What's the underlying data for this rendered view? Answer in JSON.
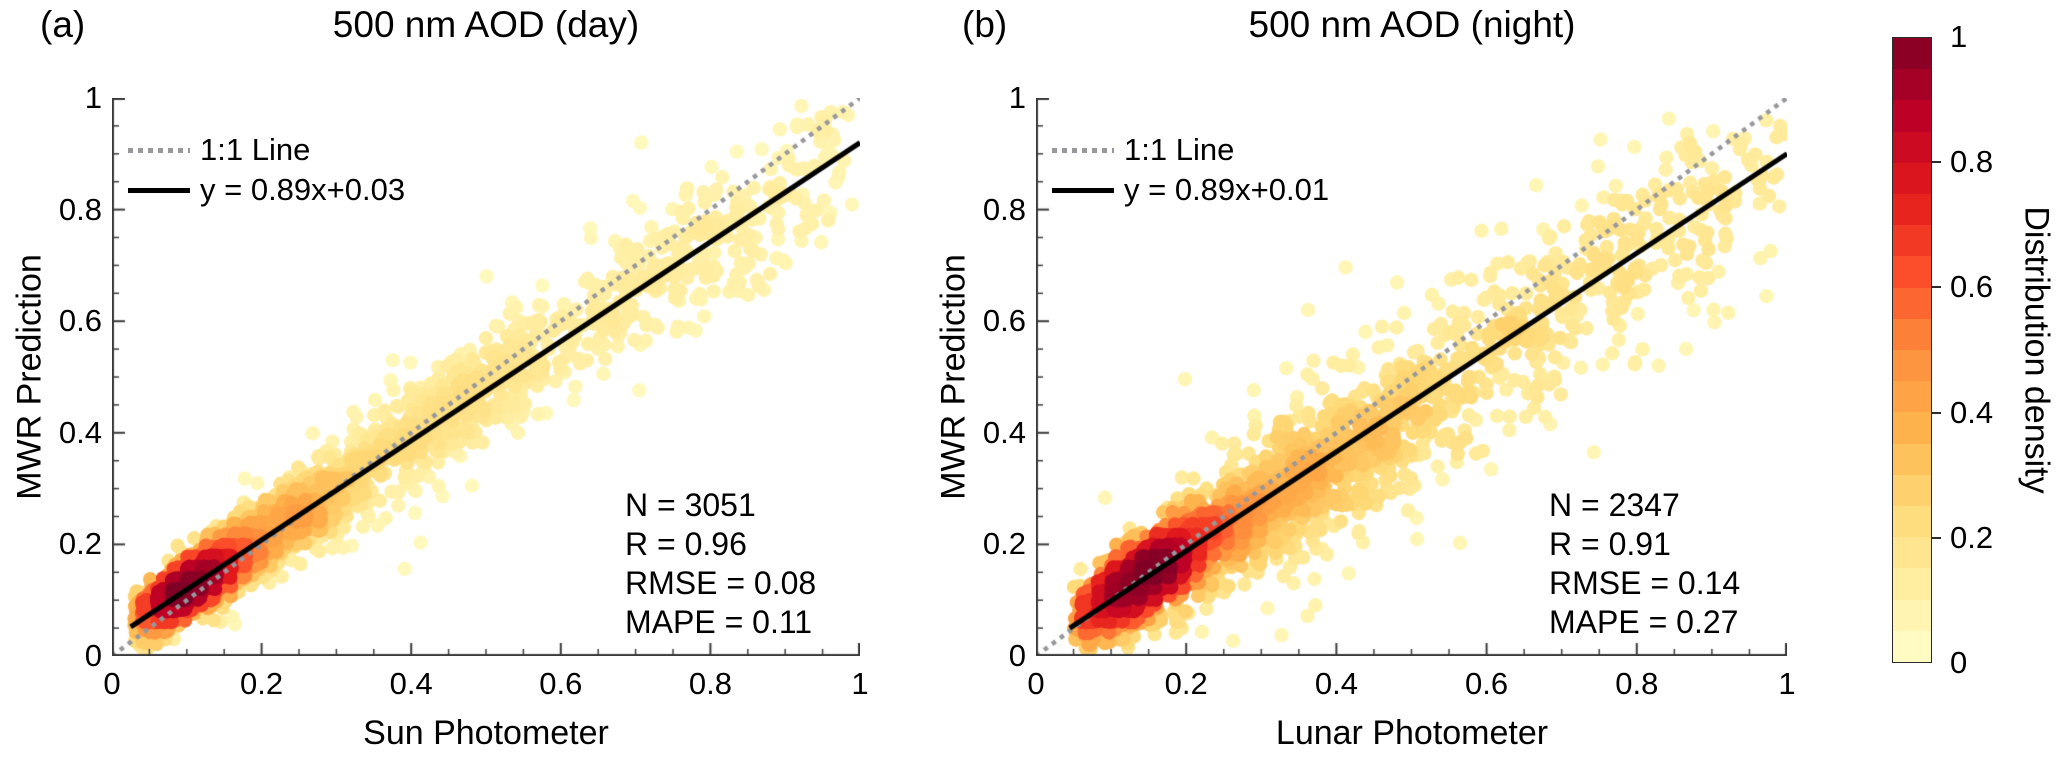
{
  "figure": {
    "background": "#ffffff",
    "axis_color": "#3a3a3a"
  },
  "colorbar": {
    "label": "Distribution density",
    "ticks": [
      "0",
      "0.2",
      "0.4",
      "0.6",
      "0.8",
      "1"
    ],
    "tick_values": [
      0,
      0.2,
      0.4,
      0.6,
      0.8,
      1
    ],
    "range": [
      0,
      1
    ],
    "segments": 20,
    "colormap_name": "YlOrRd",
    "colormap": [
      "#ffffcc",
      "#ffeda0",
      "#fed976",
      "#feb24c",
      "#fd8d3c",
      "#fc4e2a",
      "#e31a1c",
      "#bd0026",
      "#800026"
    ],
    "density_exponent": 0.55
  },
  "chart_data": [
    {
      "type": "scatter",
      "panel_label": "(a)",
      "title": "500 nm AOD (day)",
      "xlabel": "Sun Photometer",
      "ylabel": "MWR Prediction",
      "xlim": [
        0,
        1
      ],
      "ylim": [
        0,
        1
      ],
      "x_ticks": {
        "labels": [
          "0",
          "0.2",
          "0.4",
          "0.6",
          "0.8",
          "1"
        ],
        "values": [
          0,
          0.2,
          0.4,
          0.6,
          0.8,
          1
        ]
      },
      "y_ticks": {
        "labels": [
          "0",
          "0.2",
          "0.4",
          "0.6",
          "0.8",
          "1"
        ],
        "values": [
          0,
          0.2,
          0.4,
          0.6,
          0.8,
          1
        ]
      },
      "minor_tick_step": 0.05,
      "legend": [
        "1:1 Line",
        "y = 0.89x+0.03"
      ],
      "identity_line": {
        "from": [
          0,
          0
        ],
        "to": [
          1,
          1
        ],
        "style": "dotted",
        "color": "#98989c"
      },
      "fit_line": {
        "equation": "y = 0.89x+0.03",
        "slope": 0.89,
        "intercept": 0.03,
        "x_range": [
          0.025,
          1.0
        ],
        "color": "#000000"
      },
      "stats": {
        "N": 3051,
        "R": 0.96,
        "RMSE": 0.08,
        "MAPE": 0.11
      },
      "stats_lines": [
        "N = 3051",
        "R = 0.96",
        "RMSE = 0.08",
        "MAPE = 0.11"
      ],
      "n_points": 3051,
      "point_color_by": "distribution density (YlOrRd, 0-1)",
      "x_observed_min": 0.03,
      "distribution_clusters": [
        {
          "n": 1520,
          "x_mu": 0.1,
          "x_sigma": 0.042,
          "y_sigma": 0.022,
          "y_bias": 0.002
        },
        {
          "n": 810,
          "x_mu": 0.21,
          "x_sigma": 0.085,
          "y_sigma": 0.035,
          "y_bias": 0.004
        },
        {
          "n": 425,
          "x_mu": 0.44,
          "x_sigma": 0.13,
          "y_sigma": 0.05,
          "y_bias": 0.008
        },
        {
          "n": 235,
          "x_mu": 0.8,
          "x_sigma": 0.11,
          "y_sigma": 0.065,
          "y_bias": -0.005
        },
        {
          "n": 61,
          "x_mu": 0.55,
          "x_sigma": 0.25,
          "y_sigma": 0.12,
          "y_bias": 0.02
        }
      ]
    },
    {
      "type": "scatter",
      "panel_label": "(b)",
      "title": "500 nm AOD (night)",
      "xlabel": "Lunar Photometer",
      "ylabel": "MWR Prediction",
      "xlim": [
        0,
        1
      ],
      "ylim": [
        0,
        1
      ],
      "x_ticks": {
        "labels": [
          "0",
          "0.2",
          "0.4",
          "0.6",
          "0.8",
          "1"
        ],
        "values": [
          0,
          0.2,
          0.4,
          0.6,
          0.8,
          1
        ]
      },
      "y_ticks": {
        "labels": [
          "0",
          "0.2",
          "0.4",
          "0.6",
          "0.8",
          "1"
        ],
        "values": [
          0,
          0.2,
          0.4,
          0.6,
          0.8,
          1
        ]
      },
      "minor_tick_step": 0.05,
      "legend": [
        "1:1 Line",
        "y = 0.89x+0.01"
      ],
      "identity_line": {
        "from": [
          0,
          0
        ],
        "to": [
          1,
          1
        ],
        "style": "dotted",
        "color": "#98989c"
      },
      "fit_line": {
        "equation": "y = 0.89x+0.01",
        "slope": 0.89,
        "intercept": 0.01,
        "x_range": [
          0.045,
          1.0
        ],
        "color": "#000000"
      },
      "stats": {
        "N": 2347,
        "R": 0.91,
        "RMSE": 0.14,
        "MAPE": 0.27
      },
      "stats_lines": [
        "N = 2347",
        "R = 0.91",
        "RMSE = 0.14",
        "MAPE = 0.27"
      ],
      "n_points": 2347,
      "point_color_by": "distribution density (YlOrRd, 0-1)",
      "x_observed_min": 0.05,
      "distribution_clusters": [
        {
          "n": 1150,
          "x_mu": 0.14,
          "x_sigma": 0.055,
          "y_sigma": 0.035,
          "y_bias": 0.005
        },
        {
          "n": 580,
          "x_mu": 0.3,
          "x_sigma": 0.1,
          "y_sigma": 0.06,
          "y_bias": -0.01
        },
        {
          "n": 340,
          "x_mu": 0.52,
          "x_sigma": 0.14,
          "y_sigma": 0.085,
          "y_bias": -0.02
        },
        {
          "n": 210,
          "x_mu": 0.82,
          "x_sigma": 0.13,
          "y_sigma": 0.09,
          "y_bias": 0.0
        },
        {
          "n": 67,
          "x_mu": 0.45,
          "x_sigma": 0.27,
          "y_sigma": 0.16,
          "y_bias": 0.02
        }
      ]
    }
  ]
}
